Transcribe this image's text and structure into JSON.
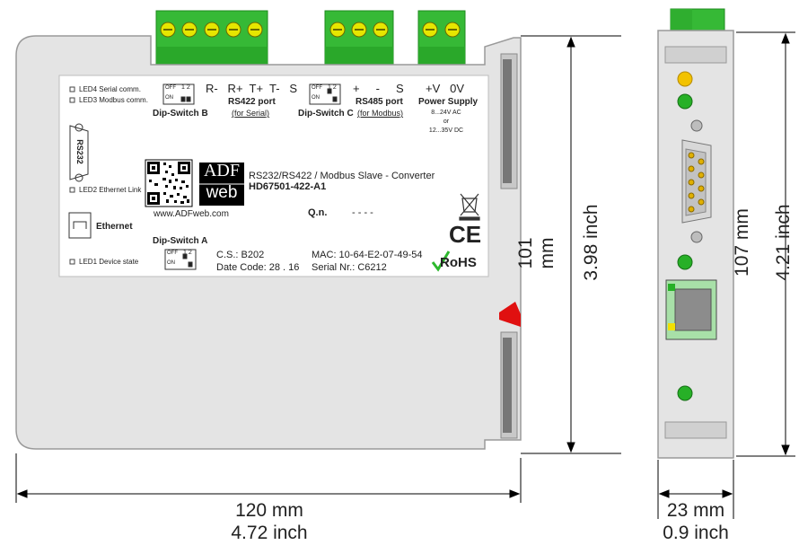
{
  "front": {
    "leds": {
      "led4": "LED4 Serial comm.",
      "led3": "LED3 Modbus comm.",
      "led2": "LED2 Ethernet Link",
      "led1": "LED1 Device state"
    },
    "dip_b": "Dip-Switch B",
    "dip_c": "Dip-Switch C",
    "dip_a": "Dip-Switch A",
    "dip_off": "OFF",
    "dip_on": "ON",
    "dip_nums": "1 2",
    "rs422_pins": "R-   R+  T+  T-   S",
    "rs422_title": "RS422 port",
    "rs422_sub": "(for Serial)",
    "rs485_pins": "+     -     S",
    "rs485_title": "RS485 port",
    "rs485_sub": "(for Modbus)",
    "power_pins": "+V   0V",
    "power_title": "Power Supply",
    "power_ac": "8...24V AC",
    "power_or": "or",
    "power_dc": "12...35V DC",
    "rs232": "RS232",
    "logo_top": "ADF",
    "logo_bottom": "web",
    "product_desc": "RS232/RS422 / Modbus Slave - Converter",
    "product_code": "HD67501-422-A1",
    "website": "www.ADFweb.com",
    "qn_label": "Q.n.",
    "qn_value": "- - - -",
    "ethernet": "Ethernet",
    "cs": "C.S.: B202",
    "date_code": "Date Code: 28 . 16",
    "mac": "MAC: 10-64-E2-07-49-54",
    "serial": "Serial Nr.: C6212",
    "ce": "CE",
    "rohs": "RoHS"
  },
  "dimensions": {
    "height_front_mm": "101 mm",
    "height_front_inch": "3.98  inch",
    "width_front_mm": "120 mm",
    "width_front_inch": "4.72 inch",
    "height_side_mm": "107 mm",
    "height_side_inch": "4.21 inch",
    "width_side_mm": "23 mm",
    "width_side_inch": "0.9 inch"
  },
  "colors": {
    "terminal_green": "#2db82d",
    "case_gray": "#e3e3e3",
    "led_green": "#27b027",
    "led_yellow": "#f2c200",
    "clip_red": "#e01010"
  }
}
